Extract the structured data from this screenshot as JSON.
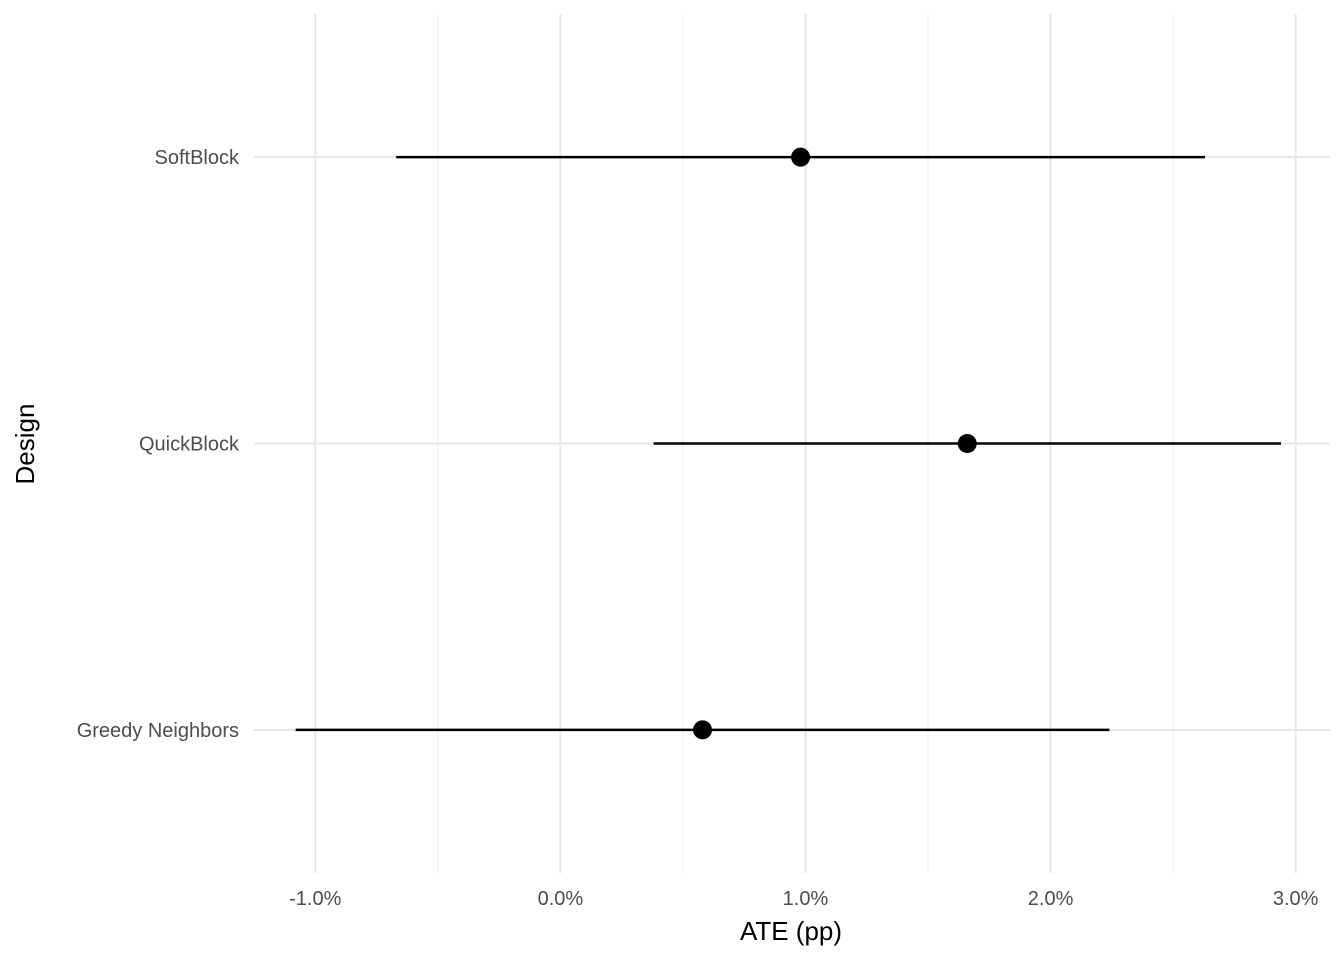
{
  "chart_data": {
    "type": "scatter",
    "title": "",
    "xlabel": "ATE (pp)",
    "ylabel": "Design",
    "xlim": [
      -1.25,
      3.14
    ],
    "x_ticks": [
      -1.0,
      0.0,
      1.0,
      2.0,
      3.0
    ],
    "x_tick_labels": [
      "-1.0%",
      "0.0%",
      "1.0%",
      "2.0%",
      "3.0%"
    ],
    "x_minor_ticks": [
      -0.5,
      0.5,
      1.5,
      2.5
    ],
    "grid": true,
    "legend": "none",
    "categories": [
      "SoftBlock",
      "QuickBlock",
      "Greedy Neighbors"
    ],
    "estimates": [
      0.98,
      1.66,
      0.58
    ],
    "ci_low": [
      -0.67,
      0.38,
      -1.08
    ],
    "ci_high": [
      2.63,
      2.94,
      2.24
    ]
  }
}
